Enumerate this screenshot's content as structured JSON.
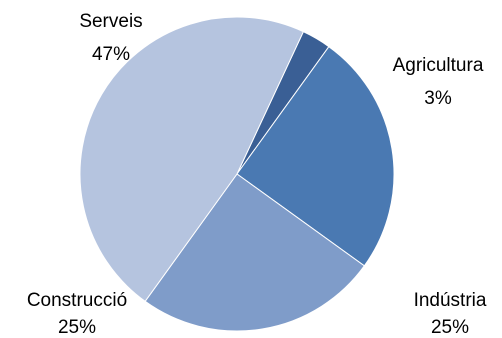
{
  "chart_data": {
    "type": "pie",
    "title": "",
    "categories": [
      "Agricultura",
      "Indústria",
      "Construcció",
      "Serveis"
    ],
    "values": [
      3,
      25,
      25,
      47
    ],
    "value_labels": [
      "3%",
      "25%",
      "25%",
      "47%"
    ],
    "colors": [
      "#3a5f95",
      "#4a79b2",
      "#7f9cc9",
      "#b5c4df"
    ],
    "legend": "none",
    "start_angle_deg": 65,
    "direction": "clockwise"
  }
}
